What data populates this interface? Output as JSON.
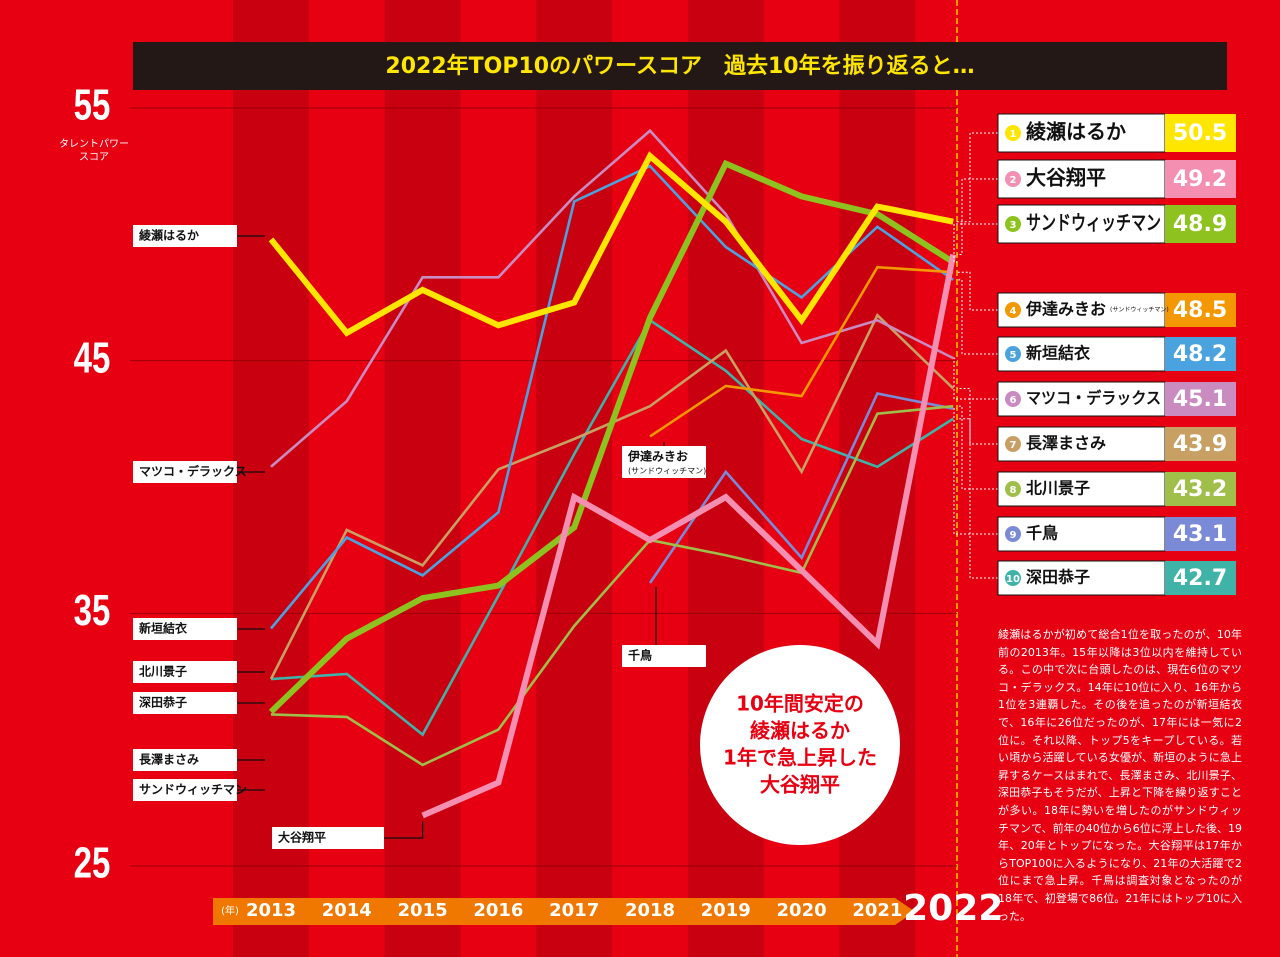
{
  "chart_data": {
    "type": "line",
    "title": "2022年TOP10のパワースコア　過去10年を振り返ると…",
    "ylabel": "タレントパワースコア",
    "xlabel": "(年)",
    "categories": [
      2013,
      2014,
      2015,
      2016,
      2017,
      2018,
      2019,
      2020,
      2021,
      2022
    ],
    "ylim": [
      25,
      55
    ],
    "yticks": [
      25,
      35,
      45,
      55
    ],
    "grid": true,
    "series": [
      {
        "rank": 1,
        "name": "綾瀬はるか",
        "color": "#ffe600",
        "values": [
          49.8,
          46.1,
          47.8,
          46.4,
          47.3,
          53.1,
          50.5,
          46.6,
          51.1,
          50.5
        ]
      },
      {
        "rank": 2,
        "name": "大谷翔平",
        "color": "#f48fb1",
        "values": [
          null,
          null,
          27.0,
          28.3,
          39.6,
          37.9,
          39.6,
          36.7,
          33.8,
          49.2
        ]
      },
      {
        "rank": 3,
        "name": "サンドウィッチマン",
        "color": "#8dc21f",
        "values": [
          31.1,
          34.0,
          35.6,
          36.1,
          38.4,
          46.7,
          52.8,
          51.5,
          50.8,
          48.9
        ]
      },
      {
        "rank": 4,
        "name": "伊達みきお",
        "note": "(サンドウィッチマン)",
        "color": "#f39800",
        "values": [
          null,
          null,
          null,
          null,
          null,
          42.0,
          44.0,
          43.6,
          48.7,
          48.5
        ]
      },
      {
        "rank": 5,
        "name": "新垣結衣",
        "color": "#4aa3df",
        "values": [
          34.4,
          38.0,
          36.5,
          39.0,
          51.3,
          52.7,
          49.5,
          47.5,
          50.3,
          48.2
        ]
      },
      {
        "rank": 6,
        "name": "マツコ・デラックス",
        "color": "#c98bc0",
        "values": [
          40.8,
          43.4,
          48.3,
          48.3,
          51.5,
          54.1,
          50.8,
          45.7,
          46.6,
          45.1
        ]
      },
      {
        "rank": 7,
        "name": "長澤まさみ",
        "color": "#c9a063",
        "values": [
          32.4,
          38.3,
          36.9,
          40.7,
          41.9,
          43.2,
          45.4,
          40.6,
          46.8,
          43.9
        ]
      },
      {
        "rank": 8,
        "name": "北川景子",
        "color": "#9fbf4a",
        "values": [
          31.0,
          30.9,
          29.0,
          30.4,
          34.5,
          37.9,
          37.3,
          36.6,
          42.9,
          43.2
        ]
      },
      {
        "rank": 9,
        "name": "千鳥",
        "color": "#7b8ad6",
        "values": [
          null,
          null,
          null,
          null,
          null,
          36.2,
          40.6,
          37.2,
          43.7,
          43.1
        ]
      },
      {
        "rank": 10,
        "name": "深田恭子",
        "color": "#3fb3a8",
        "values": [
          32.4,
          32.6,
          30.2,
          35.7,
          41.3,
          46.6,
          44.6,
          41.9,
          40.8,
          42.7
        ]
      }
    ],
    "annotation": [
      "10年間安定の",
      "綾瀬はるか",
      "1年で急上昇した",
      "大谷翔平"
    ],
    "note": "綾瀬はるかが初めて総合1位を取ったのが、10年前の2013年。15年以降は3位以内を維持している。この中で次に台頭したのは、現在6位のマツコ・デラックス。14年に10位に入り、16年から1位を3連覇した。その後を追ったのが新垣結衣で、16年に26位だったのが、17年には一気に2位に。それ以降、トップ5をキープしている。若い頃から活躍している女優が、新垣のように急上昇するケースはまれで、長澤まさみ、北川景子、深田恭子もそうだが、上昇と下降を繰り返すことが多い。18年に勢いを増したのがサンドウィッチマンで、前年の40位から6位に浮上した後、19年、20年とトップになった。大谷翔平は17年からTOP100に入るようになり、21年の大活躍で2位にまで急上昇。千鳥は調査対象となったのが18年で、初登場で86位。21年にはトップ10に入った。"
  }
}
